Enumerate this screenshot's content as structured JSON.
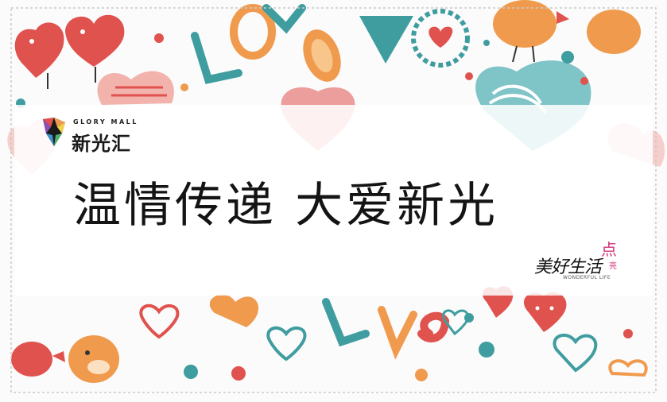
{
  "brand": {
    "name_en": "GLORY MALL",
    "name_cn": "新光汇"
  },
  "headline": "温情传递 大爱新光",
  "badge": {
    "dot": "点",
    "main": "美好生活",
    "liang": "亮",
    "en": "WONDERFUL LIFE"
  },
  "decor": {
    "word": "LOVE"
  },
  "colors": {
    "red": "#e0524e",
    "teal": "#3f9da0",
    "orange": "#f09a4e",
    "pink": "#f3b3ad"
  }
}
